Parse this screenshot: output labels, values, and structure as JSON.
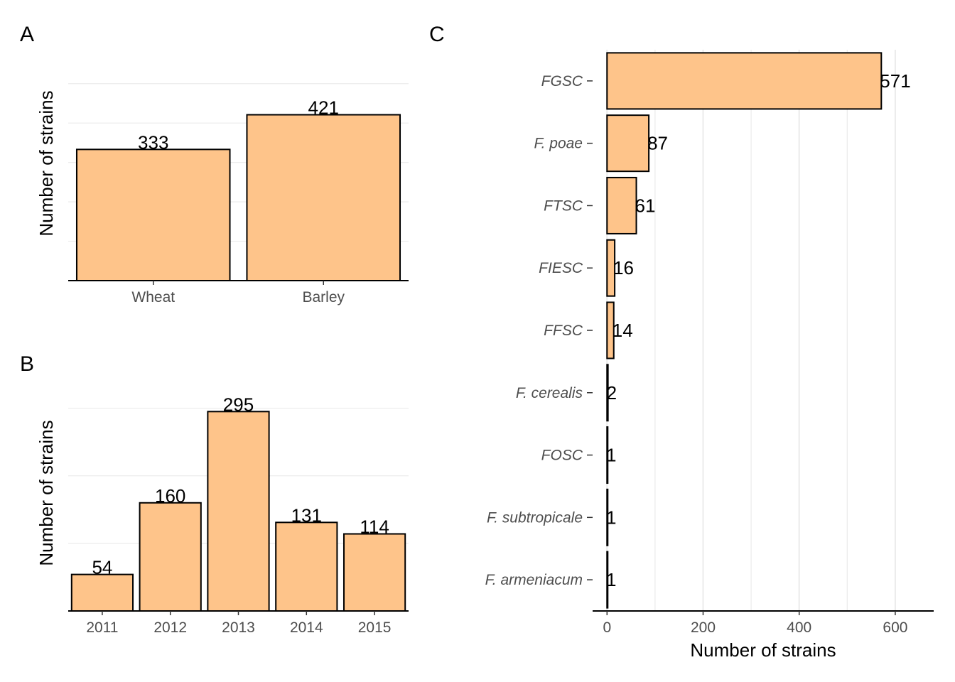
{
  "colors": {
    "bar_fill": "#FEC48A",
    "bar_stroke": "#000000",
    "grid": "#EBEBEB",
    "tick_text": "#4D4D4D"
  },
  "chart_data": [
    {
      "panel": "A",
      "type": "bar",
      "orientation": "vertical",
      "categories": [
        "Wheat",
        "Barley"
      ],
      "values": [
        333,
        421
      ],
      "ylabel": "Number of strains",
      "ylim": [
        0,
        550
      ],
      "grid": "horizontal",
      "y_tick_labels_shown": false
    },
    {
      "panel": "B",
      "type": "bar",
      "orientation": "vertical",
      "categories": [
        "2011",
        "2012",
        "2013",
        "2014",
        "2015"
      ],
      "values": [
        54,
        160,
        295,
        131,
        114
      ],
      "ylabel": "Number of strains",
      "ylim": [
        0,
        350
      ],
      "grid": "horizontal",
      "y_tick_labels_shown": false
    },
    {
      "panel": "C",
      "type": "bar",
      "orientation": "horizontal",
      "categories": [
        "FGSC",
        "F. poae",
        "FTSC",
        "FIESC",
        "FFSC",
        "F. cerealis",
        "FOSC",
        "F. subtropicale",
        "F. armeniacum"
      ],
      "values": [
        571,
        87,
        61,
        16,
        14,
        2,
        1,
        1,
        1
      ],
      "xlabel": "Number of strains",
      "xticks": [
        "0",
        "200",
        "400",
        "600"
      ],
      "xlim": [
        -30,
        680
      ],
      "grid": "vertical"
    }
  ]
}
